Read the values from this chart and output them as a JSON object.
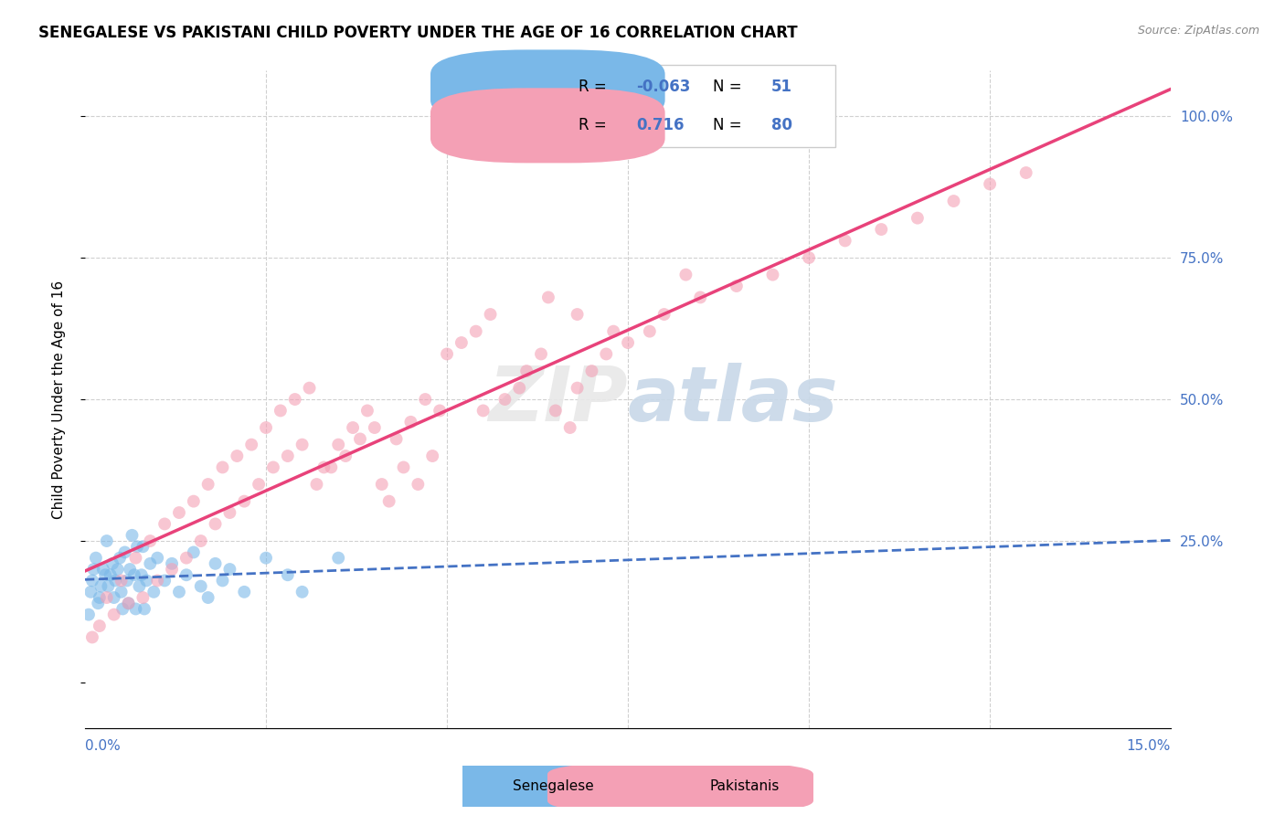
{
  "title": "SENEGALESE VS PAKISTANI CHILD POVERTY UNDER THE AGE OF 16 CORRELATION CHART",
  "source": "Source: ZipAtlas.com",
  "ylabel": "Child Poverty Under the Age of 16",
  "xlim": [
    0,
    15
  ],
  "ylim": [
    -8,
    108
  ],
  "legend_R_blue": "-0.063",
  "legend_N_blue": "51",
  "legend_R_pink": "0.716",
  "legend_N_pink": "80",
  "blue_color": "#7ab8e8",
  "pink_color": "#f4a0b5",
  "blue_line_color": "#4472c4",
  "pink_line_color": "#e8427a",
  "senegalese_x": [
    0.05,
    0.08,
    0.1,
    0.12,
    0.15,
    0.18,
    0.2,
    0.22,
    0.25,
    0.28,
    0.3,
    0.32,
    0.35,
    0.38,
    0.4,
    0.42,
    0.45,
    0.48,
    0.5,
    0.52,
    0.55,
    0.58,
    0.6,
    0.62,
    0.65,
    0.68,
    0.7,
    0.72,
    0.75,
    0.78,
    0.8,
    0.82,
    0.85,
    0.9,
    0.95,
    1.0,
    1.1,
    1.2,
    1.3,
    1.4,
    1.5,
    1.6,
    1.7,
    1.8,
    1.9,
    2.0,
    2.2,
    2.5,
    2.8,
    3.0,
    3.5
  ],
  "senegalese_y": [
    12,
    16,
    18,
    20,
    22,
    14,
    15,
    17,
    20,
    19,
    25,
    17,
    19,
    21,
    15,
    18,
    20,
    22,
    16,
    13,
    23,
    18,
    14,
    20,
    26,
    19,
    13,
    24,
    17,
    19,
    24,
    13,
    18,
    21,
    16,
    22,
    18,
    21,
    16,
    19,
    23,
    17,
    15,
    21,
    18,
    20,
    16,
    22,
    19,
    16,
    22
  ],
  "pakistani_x": [
    0.1,
    0.2,
    0.3,
    0.4,
    0.5,
    0.6,
    0.7,
    0.8,
    0.9,
    1.0,
    1.1,
    1.2,
    1.3,
    1.4,
    1.5,
    1.6,
    1.7,
    1.8,
    1.9,
    2.0,
    2.1,
    2.2,
    2.3,
    2.4,
    2.5,
    2.6,
    2.7,
    2.8,
    2.9,
    3.0,
    3.1,
    3.2,
    3.3,
    3.4,
    3.5,
    3.6,
    3.7,
    3.8,
    3.9,
    4.0,
    4.2,
    4.4,
    4.6,
    4.8,
    5.0,
    5.2,
    5.4,
    5.6,
    5.8,
    6.0,
    6.1,
    6.3,
    6.5,
    6.7,
    6.8,
    7.0,
    7.2,
    7.5,
    7.8,
    8.0,
    8.5,
    9.0,
    9.5,
    10.0,
    10.5,
    11.0,
    11.5,
    12.0,
    12.5,
    13.0,
    5.5,
    4.3,
    4.1,
    4.5,
    4.7,
    4.9,
    6.4,
    6.8,
    7.3,
    8.3
  ],
  "pakistani_y": [
    8,
    10,
    15,
    12,
    18,
    14,
    22,
    15,
    25,
    18,
    28,
    20,
    30,
    22,
    32,
    25,
    35,
    28,
    38,
    30,
    40,
    32,
    42,
    35,
    45,
    38,
    48,
    40,
    50,
    42,
    52,
    35,
    38,
    38,
    42,
    40,
    45,
    43,
    48,
    45,
    32,
    38,
    35,
    40,
    58,
    60,
    62,
    65,
    50,
    52,
    55,
    58,
    48,
    45,
    52,
    55,
    58,
    60,
    62,
    65,
    68,
    70,
    72,
    75,
    78,
    80,
    82,
    85,
    88,
    90,
    48,
    43,
    35,
    46,
    50,
    48,
    68,
    65,
    62,
    72
  ]
}
